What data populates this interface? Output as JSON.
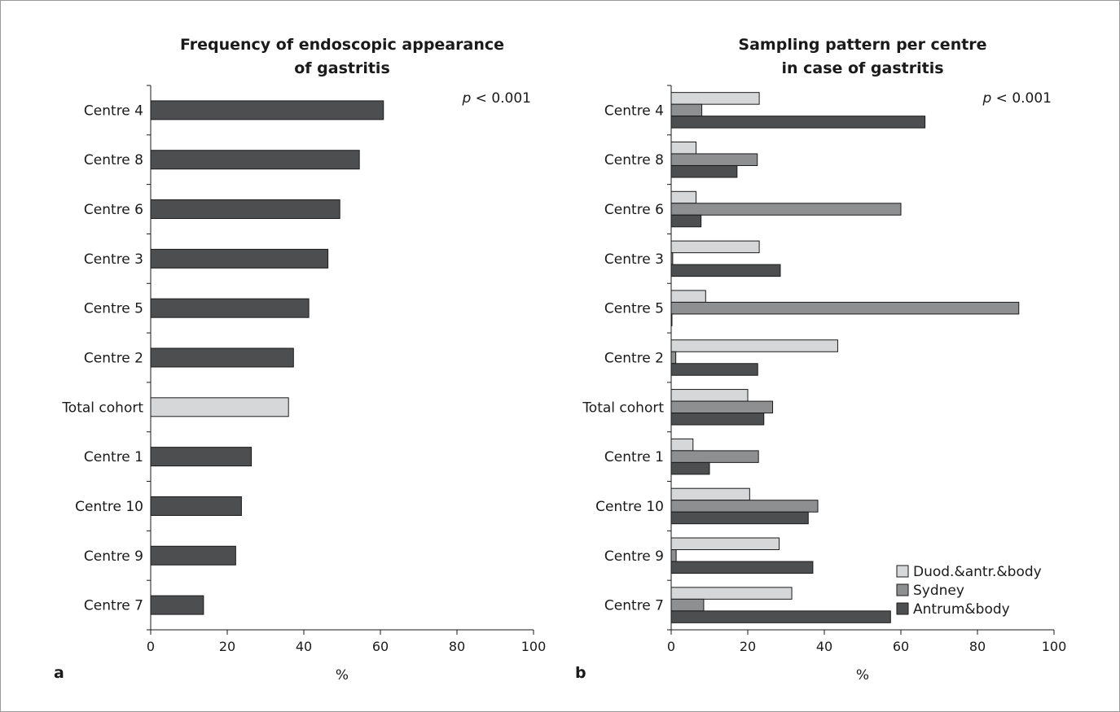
{
  "colors": {
    "dark": "#4d4e50",
    "medium": "#8e8f91",
    "light": "#d6d7d8",
    "stroke": "#1a1a1a",
    "frame": "#9a9a9a"
  },
  "chart_data": [
    {
      "panel": "a",
      "type": "bar",
      "orientation": "horizontal",
      "title_lines": [
        "Frequency of endoscopic appearance",
        "of gastritis"
      ],
      "annotation": {
        "p": "p",
        "rest": " < 0.001"
      },
      "xlabel": "%",
      "ylabel": "",
      "xlim": [
        0,
        100
      ],
      "xticks": [
        0,
        20,
        40,
        60,
        80,
        100
      ],
      "grid": false,
      "categories": [
        "Centre 4",
        "Centre 8",
        "Centre 6",
        "Centre 3",
        "Centre 5",
        "Centre 2",
        "Total cohort",
        "Centre 1",
        "Centre 10",
        "Centre 9",
        "Centre 7"
      ],
      "values": [
        60.8,
        54.5,
        49.4,
        46.3,
        41.3,
        37.3,
        36.0,
        26.3,
        23.7,
        22.2,
        13.8
      ],
      "highlight_category": "Total cohort"
    },
    {
      "panel": "b",
      "type": "bar",
      "orientation": "horizontal",
      "title_lines": [
        "Sampling pattern per centre",
        "in case of gastritis"
      ],
      "annotation": {
        "p": "p",
        "rest": " < 0.001"
      },
      "xlabel": "%",
      "ylabel": "",
      "xlim": [
        0,
        100
      ],
      "xticks": [
        0,
        20,
        40,
        60,
        80,
        100
      ],
      "grid": false,
      "legend_position": "bottom-right",
      "categories": [
        "Centre 4",
        "Centre 8",
        "Centre 6",
        "Centre 3",
        "Centre 5",
        "Centre 2",
        "Total cohort",
        "Centre 1",
        "Centre 10",
        "Centre 9",
        "Centre 7"
      ],
      "series": [
        {
          "name": "Duod.&antr.&body",
          "color": "light",
          "values": [
            23.0,
            6.5,
            6.5,
            23.0,
            9.0,
            43.5,
            20.0,
            5.7,
            20.5,
            28.2,
            31.5
          ]
        },
        {
          "name": "Sydney",
          "color": "medium",
          "values": [
            8.0,
            22.5,
            60.0,
            0.4,
            90.8,
            1.2,
            26.5,
            22.8,
            38.3,
            1.3,
            8.5
          ]
        },
        {
          "name": "Antrum&body",
          "color": "dark",
          "values": [
            66.3,
            17.2,
            7.8,
            28.5,
            0.2,
            22.6,
            24.2,
            10.0,
            35.8,
            37.0,
            57.3
          ]
        }
      ]
    }
  ]
}
